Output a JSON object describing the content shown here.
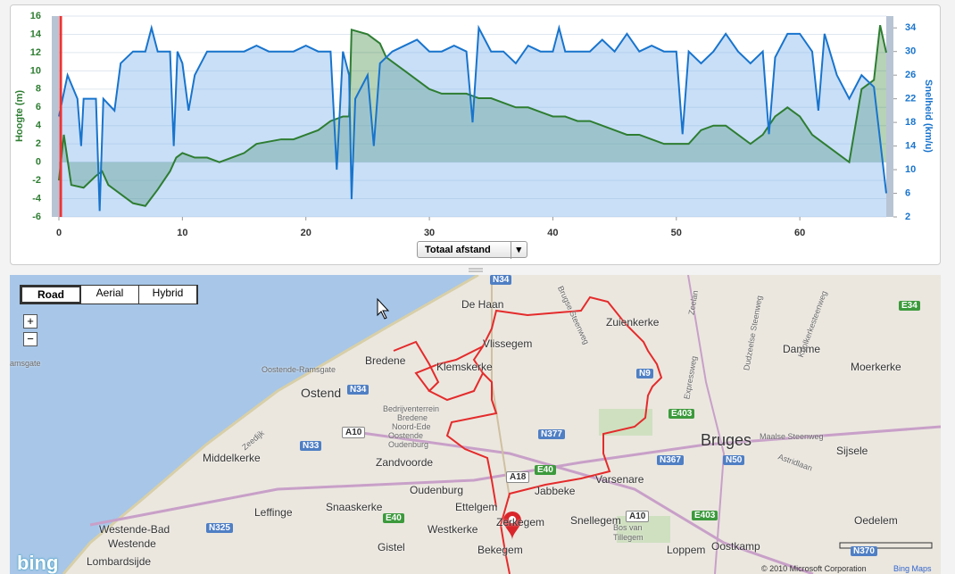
{
  "chart_data": {
    "type": "area",
    "xlabel": "Totaal afstand",
    "xlim": [
      0,
      67
    ],
    "xticks": [
      0,
      10,
      20,
      30,
      40,
      50,
      60
    ],
    "ylim": [
      -6,
      16
    ],
    "yticks": [
      -6,
      -4,
      -2,
      0,
      2,
      4,
      6,
      8,
      10,
      12,
      14,
      16
    ],
    "y2lim": [
      2,
      36
    ],
    "y2ticks": [
      2,
      6,
      10,
      14,
      18,
      22,
      26,
      30,
      34
    ],
    "series": [
      {
        "name": "Hoogte (m)",
        "color": "#2e7d32",
        "axis": "y",
        "x": [
          0,
          0.4,
          1,
          2,
          3,
          3.5,
          4,
          5,
          6,
          7,
          8,
          9,
          9.5,
          10,
          11,
          12,
          13,
          14,
          15,
          16,
          18,
          19,
          20,
          21,
          22,
          23,
          23.5,
          23.7,
          25,
          26,
          26.5,
          27,
          28,
          29,
          30,
          31,
          32,
          33,
          34,
          35,
          36,
          37,
          38,
          39,
          40,
          41,
          42,
          43,
          44,
          45,
          46,
          47,
          48,
          49,
          50,
          51,
          52,
          53,
          54,
          55,
          56,
          57,
          58,
          59,
          60,
          61,
          62,
          63,
          64,
          65,
          66,
          66.5,
          67
        ],
        "values": [
          -2,
          3,
          -2.5,
          -2.8,
          -1.5,
          -1,
          -2.5,
          -3.5,
          -4.5,
          -4.8,
          -3,
          -1,
          0.5,
          1,
          0.5,
          0.5,
          0,
          0.5,
          1,
          2,
          2.5,
          2.5,
          3,
          3.5,
          4.5,
          5,
          5,
          14.5,
          14,
          13,
          11.5,
          11,
          10,
          9,
          8,
          7.5,
          7.5,
          7.5,
          7,
          7,
          6.5,
          6,
          6,
          5.5,
          5,
          5,
          4.5,
          4.5,
          4,
          3.5,
          3,
          3,
          2.5,
          2,
          2,
          2,
          3.5,
          4,
          4,
          3,
          2,
          3,
          5,
          6,
          5,
          3,
          2,
          1,
          0,
          8,
          9,
          15,
          12
        ]
      },
      {
        "name": "Snelheid (km/u)",
        "color": "#1874cd",
        "axis": "y2",
        "x": [
          0,
          0.7,
          1.5,
          1.8,
          2,
          3,
          3.3,
          3.6,
          4.5,
          5,
          6,
          7,
          7.5,
          8,
          9,
          9.3,
          9.6,
          10,
          10.5,
          11,
          12,
          13,
          14,
          15,
          16,
          17,
          18,
          19,
          20,
          21,
          22,
          22.5,
          23,
          23.5,
          23.7,
          24,
          25,
          25.5,
          26,
          27,
          28,
          29,
          30,
          31,
          32,
          33,
          33.5,
          34,
          35,
          36,
          37,
          38,
          39,
          40,
          40.5,
          41,
          42,
          43,
          44,
          45,
          46,
          47,
          48,
          49,
          50,
          50.5,
          51,
          52,
          53,
          54,
          55,
          56,
          57,
          57.5,
          58,
          59,
          60,
          61,
          61.5,
          62,
          63,
          64,
          65,
          66,
          67
        ],
        "values": [
          19,
          26,
          22,
          14,
          22,
          22,
          3,
          22,
          20,
          28,
          30,
          30,
          34,
          30,
          30,
          14,
          30,
          28,
          20,
          26,
          30,
          30,
          30,
          30,
          31,
          30,
          30,
          30,
          31,
          30,
          30,
          10,
          30,
          26,
          5,
          22,
          26,
          14,
          28,
          30,
          31,
          32,
          30,
          30,
          31,
          30,
          18,
          34,
          30,
          30,
          28,
          31,
          30,
          30,
          34,
          30,
          30,
          30,
          32,
          30,
          33,
          30,
          31,
          30,
          30,
          16,
          30,
          28,
          30,
          33,
          30,
          28,
          30,
          16,
          29,
          33,
          33,
          30,
          20,
          33,
          26,
          22,
          26,
          24,
          6
        ]
      }
    ]
  },
  "map": {
    "modes": [
      "Road",
      "Aerial",
      "Hybrid"
    ],
    "zoom": [
      "+",
      "−"
    ],
    "places": [
      "De Haan",
      "Vlissegem",
      "Zuienkerke",
      "Bredene",
      "Klemskerke",
      "Ostend",
      "Bedrijventerrein",
      "Bredene",
      "Noord-Ede",
      "Oostende",
      "Oudenburg",
      "Zandvoorde",
      "Middelkerke",
      "Oudenburg",
      "Jabbeke",
      "Varsenare",
      "Bruges",
      "Sijsele",
      "Damme",
      "Moerkerke",
      "Leffinge",
      "Snaaskerke",
      "Ettelgem",
      "Zerkegem",
      "Snellegem",
      "Westkerke",
      "Westende-Bad",
      "Westende",
      "Lombardsijde",
      "Gistel",
      "Bekegem",
      "Loppem",
      "Oostkamp",
      "Oedelem",
      "Bos van",
      "Tillegem",
      "Maalse Steenweg",
      "Oostende-Ramsgate",
      "amsgate",
      "Zeedijk",
      "Brugse Steenweg",
      "Expressweg",
      "Zeelan",
      "Koolkerkesteenweg",
      "Dudzeelse Steenweg",
      "Astridlaan"
    ],
    "shields": [
      "N34",
      "N33",
      "A10",
      "E40",
      "N377",
      "N9",
      "E403",
      "N367",
      "N50",
      "A18",
      "N325",
      "E40",
      "A10",
      "E403",
      "E34",
      "N370",
      "N34"
    ],
    "logo": "bing",
    "copyright": "© 2010 Microsoft Corporation",
    "credit": "Bing Maps"
  }
}
